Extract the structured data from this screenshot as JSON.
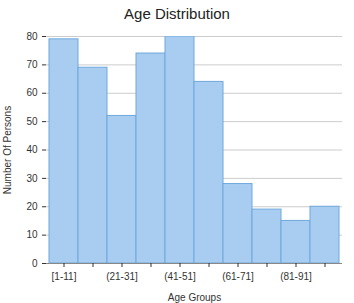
{
  "chart_data": {
    "type": "bar",
    "title": "Age Distribution",
    "x_label": "Age Groups",
    "y_label": "Number Of Persons",
    "categories": [
      "[1-11]",
      null,
      "(21-31]",
      null,
      "(41-51]",
      null,
      "(61-71]",
      null,
      "(81-91]",
      null
    ],
    "values": [
      79,
      69,
      52,
      74,
      80,
      64,
      28,
      19,
      15,
      20
    ],
    "color": "#a9cdf0",
    "ylim": [
      0,
      80
    ],
    "yticks": [
      0,
      10,
      20,
      30,
      40,
      50,
      60,
      70,
      80
    ],
    "grid": true
  }
}
